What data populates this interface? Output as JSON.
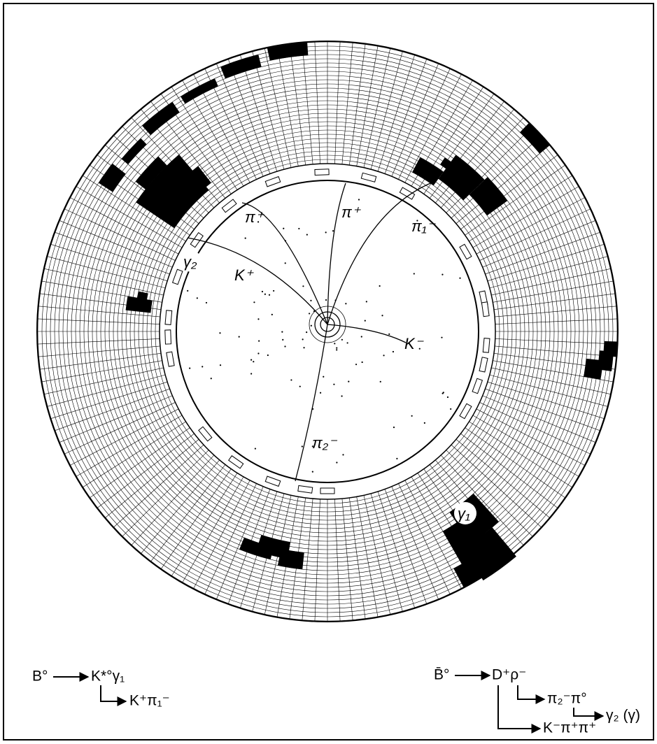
{
  "track_labels": [
    "π⁺",
    "π⁺",
    "π₁⁻",
    "K⁺",
    "K⁻",
    "π₂⁻"
  ],
  "photon_labels": [
    "γ₂",
    "γ₁"
  ],
  "decay_left": {
    "parent": "B°",
    "products": "K*°γ₁",
    "secondary": "K⁺π₁⁻"
  },
  "decay_right": {
    "parent": "B̄°",
    "products": "D⁺ρ⁻",
    "rho_decay": "π₂⁻π°",
    "pi0_decay": "γ₂ (γ)",
    "d_decay": "K⁻π⁺π⁺"
  }
}
